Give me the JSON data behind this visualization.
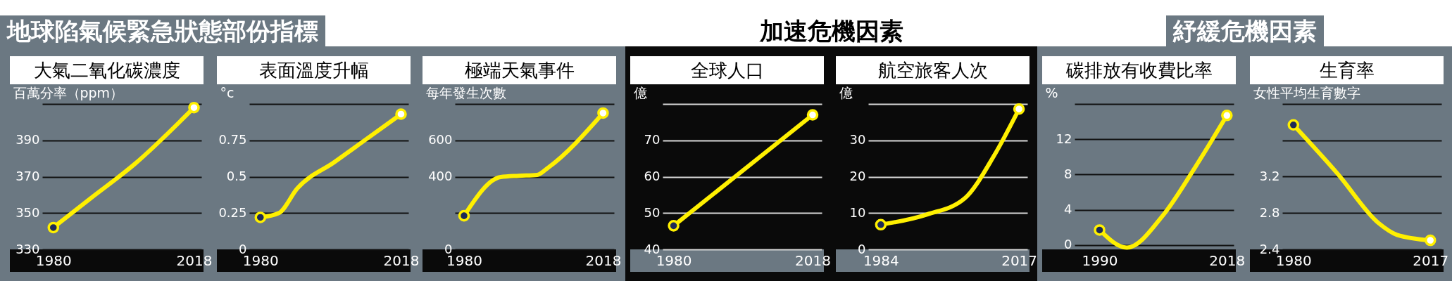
{
  "chart_data": [
    {
      "type": "line",
      "title": "大氣二氧化碳濃度",
      "ylabel": "百萬分率（ppm）",
      "annotations": [
        "地球陷氣候緊急狀態部份指標"
      ],
      "grid": "y",
      "xlim": [
        1977,
        2020
      ],
      "xticks": [
        1980,
        2018
      ],
      "ylim": [
        330,
        410
      ],
      "yticks": [
        330,
        350,
        370,
        390,
        {
          "value": 410,
          "label": null
        }
      ],
      "series": [
        {
          "color": "#fff000",
          "x": [
            1980,
            1990,
            2002,
            2018
          ],
          "values": [
            342,
            358,
            377,
            408
          ]
        },
        {
          "type": "scatter",
          "marker": "circle",
          "color": "#fff000",
          "colors": [
            "#1d2a57",
            "#ffffff"
          ],
          "x": [
            1980,
            2018
          ],
          "values": [
            342,
            408
          ]
        }
      ]
    },
    {
      "type": "line",
      "title": "表面溫度升幅",
      "ylabel": "°c",
      "grid": "y",
      "xlim": [
        1977,
        2020
      ],
      "xticks": [
        1980,
        2018
      ],
      "ylim": [
        0,
        1
      ],
      "yticks": [
        0,
        0.25,
        0.5,
        0.75,
        {
          "value": 1,
          "label": null
        }
      ],
      "series": [
        {
          "color": "#fff000",
          "x": [
            1980,
            1985,
            1990,
            2000,
            2018
          ],
          "values": [
            0.22,
            0.25,
            0.42,
            0.6,
            0.93
          ]
        },
        {
          "type": "scatter",
          "marker": "circle",
          "color": "#fff000",
          "colors": [
            "#1d2a57",
            "#ffffff"
          ],
          "x": [
            1980,
            2018
          ],
          "values": [
            0.22,
            0.93
          ]
        }
      ]
    },
    {
      "type": "line",
      "title": "極端天氣事件",
      "ylabel": "每年發生次數",
      "grid": "y",
      "xlim": [
        1977.5,
        2021
      ],
      "xticks": [
        1980,
        2018
      ],
      "ylim": [
        0,
        800
      ],
      "yticks": [
        0,
        {
          "value": 200,
          "label": null
        },
        400,
        600,
        {
          "value": 800,
          "label": null
        }
      ],
      "series": [
        {
          "color": "#fff000",
          "x": [
            1980,
            1990,
            1995,
            2000,
            2003,
            2018
          ],
          "values": [
            185,
            398,
            405,
            410,
            450,
            750
          ]
        },
        {
          "type": "scatter",
          "marker": "circle",
          "color": "#fff000",
          "colors": [
            "#1d2a57",
            "#ffffff"
          ],
          "x": [
            1980,
            2018
          ],
          "values": [
            185,
            750
          ]
        }
      ]
    },
    {
      "type": "line",
      "title": "全球人口",
      "ylabel": "億",
      "annotations": [
        "加速危機因素"
      ],
      "grid": "y",
      "xlim": [
        1977,
        2020.5
      ],
      "xticks": [
        1980,
        2018
      ],
      "ylim": [
        40,
        80
      ],
      "yticks": [
        40,
        50,
        60,
        70,
        {
          "value": 80,
          "label": null
        }
      ],
      "series": [
        {
          "color": "#fff000",
          "x": [
            1980,
            2018
          ],
          "values": [
            46.5,
            77
          ]
        },
        {
          "type": "scatter",
          "marker": "circle",
          "color": "#fff000",
          "colors": [
            "#1d2a57",
            "#ffffff"
          ],
          "x": [
            1980,
            2018
          ],
          "values": [
            46.5,
            77
          ]
        }
      ]
    },
    {
      "type": "line",
      "title": "航空旅客人次",
      "ylabel": "億",
      "grid": "y",
      "xlim": [
        1981,
        2019
      ],
      "xticks": [
        1984,
        2017
      ],
      "ylim": [
        0,
        40
      ],
      "yticks": [
        0,
        10,
        20,
        30,
        {
          "value": 40,
          "label": null
        }
      ],
      "series": [
        {
          "color": "#fff000",
          "x": [
            1984,
            1995,
            2004,
            2011,
            2017
          ],
          "values": [
            6.8,
            9.6,
            14,
            25.7,
            38.6
          ]
        },
        {
          "type": "scatter",
          "marker": "circle",
          "color": "#fff000",
          "colors": [
            "#1d2a57",
            "#ffffff"
          ],
          "x": [
            1984,
            2017
          ],
          "values": [
            6.8,
            38.6
          ]
        }
      ]
    },
    {
      "type": "line",
      "title": "碳排放有收費比率",
      "ylabel": "%",
      "annotations": [
        "紓緩危機因素"
      ],
      "grid": "y",
      "xlim": [
        1984.5,
        2019.5
      ],
      "xticks": [
        1990,
        2018
      ],
      "ylim": [
        -0.5,
        16
      ],
      "yticks": [
        0,
        4,
        8,
        12,
        {
          "value": 16,
          "label": null
        }
      ],
      "series": [
        {
          "color": "#fff000",
          "x": [
            1990,
            1996,
            2004,
            2011,
            2018
          ],
          "values": [
            1.7,
            -0.3,
            3.4,
            8.8,
            14.7
          ]
        },
        {
          "type": "scatter",
          "marker": "circle",
          "color": "#fff000",
          "colors": [
            "#1d2a57",
            "#ffffff"
          ],
          "x": [
            1990,
            2018
          ],
          "values": [
            1.7,
            14.7
          ]
        }
      ]
    },
    {
      "type": "line",
      "title": "生育率",
      "ylabel": "女性平均生育數字",
      "grid": "y",
      "xlim": [
        1977,
        2020
      ],
      "xticks": [
        1980,
        2017
      ],
      "ylim": [
        2.4,
        4
      ],
      "yticks": [
        2.4,
        2.8,
        3.2,
        {
          "value": 3.6,
          "label": null
        },
        {
          "value": 4,
          "label": null
        }
      ],
      "series": [
        {
          "color": "#fff000",
          "x": [
            1980,
            1992,
            2003,
            2008,
            2017
          ],
          "values": [
            3.77,
            3.23,
            2.69,
            2.56,
            2.5
          ]
        },
        {
          "type": "scatter",
          "marker": "circle",
          "color": "#fff000",
          "colors": [
            "#1d2a57",
            "#ffffff"
          ],
          "x": [
            1980,
            2017
          ],
          "values": [
            3.77,
            2.5
          ]
        }
      ]
    }
  ]
}
